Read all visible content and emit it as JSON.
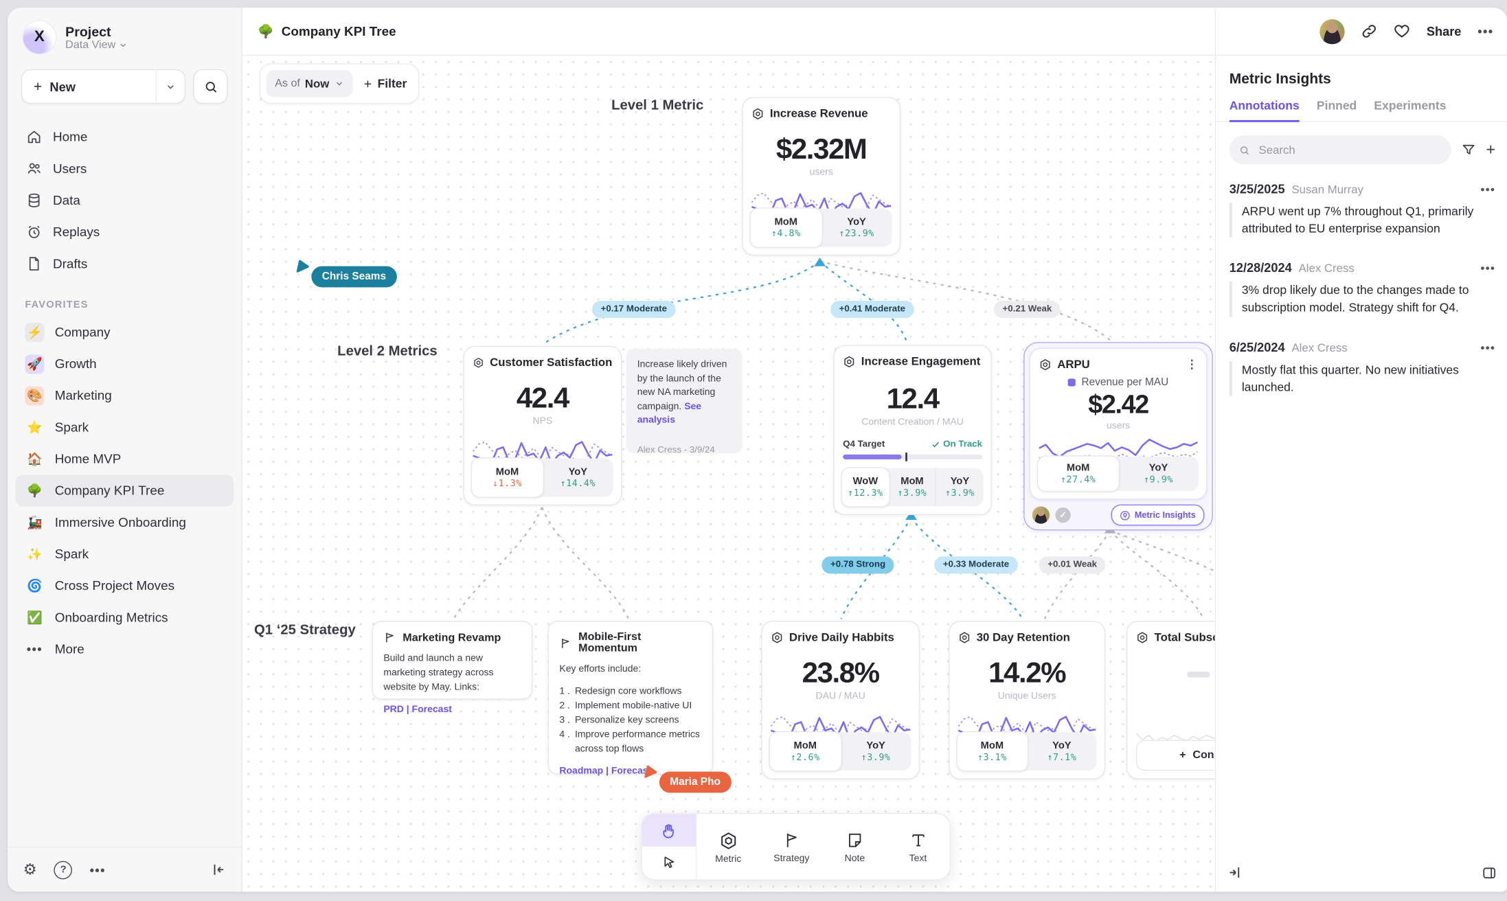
{
  "sidebar": {
    "workspace": {
      "name": "Project",
      "view": "Data View",
      "logo_letter": "X"
    },
    "new_label": "New",
    "nav": [
      {
        "label": "Home"
      },
      {
        "label": "Users"
      },
      {
        "label": "Data"
      },
      {
        "label": "Replays"
      },
      {
        "label": "Drafts"
      }
    ],
    "favorites_header": "FAVORITES",
    "favorites": [
      {
        "label": "Company",
        "emoji": "⚡"
      },
      {
        "label": "Growth",
        "emoji": "🚀"
      },
      {
        "label": "Marketing",
        "emoji": "🎨"
      },
      {
        "label": "Spark",
        "emoji": "⭐"
      },
      {
        "label": "Home MVP",
        "emoji": "🏠"
      },
      {
        "label": "Company KPI Tree",
        "emoji": "🌳"
      },
      {
        "label": "Immersive Onboarding",
        "emoji": "🚂"
      },
      {
        "label": "Spark",
        "emoji": "✨"
      },
      {
        "label": "Cross Project Moves",
        "emoji": "🌀"
      },
      {
        "label": "Onboarding Metrics",
        "emoji": "✅"
      }
    ],
    "more_label": "More"
  },
  "topbar": {
    "doc_emoji": "🌳",
    "title": "Company KPI Tree",
    "share_label": "Share"
  },
  "canvas": {
    "asof": {
      "prefix": "As of",
      "value": "Now"
    },
    "filter_label": "Filter",
    "levels": {
      "level1": "Level 1 Metric",
      "level2": "Level 2 Metrics",
      "level3": "Q1 ‘25 Strategy"
    },
    "edges": [
      {
        "text": "+0.17 Moderate",
        "strength": "moderate"
      },
      {
        "text": "+0.41 Moderate",
        "strength": "moderate"
      },
      {
        "text": "+0.21 Weak",
        "strength": "weak"
      },
      {
        "text": "+0.78 Strong",
        "strength": "strong"
      },
      {
        "text": "+0.33 Moderate",
        "strength": "moderate"
      },
      {
        "text": "+0.01 Weak",
        "strength": "weak"
      }
    ],
    "cursors": [
      {
        "name": "Chris Seams"
      },
      {
        "name": "Maria Pho"
      }
    ],
    "cards": {
      "revenue": {
        "title": "Increase Revenue",
        "value": "$2.32M",
        "unit": "users",
        "stats": [
          {
            "label": "MoM",
            "value": "↑4.8%"
          },
          {
            "label": "YoY",
            "value": "↑23.9%"
          }
        ]
      },
      "customer_satisfaction": {
        "title": "Customer Satisfaction",
        "value": "42.4",
        "unit": "NPS",
        "stats": [
          {
            "label": "MoM",
            "value": "↓1.3%"
          },
          {
            "label": "YoY",
            "value": "↑14.4%"
          }
        ]
      },
      "engagement": {
        "title": "Increase Engagement",
        "value": "12.4",
        "unit": "Content Creation / MAU",
        "target": {
          "label": "Q4 Target",
          "status": "On Track",
          "progress_pct": 42
        },
        "stats": [
          {
            "label": "WoW",
            "value": "↑12.3%"
          },
          {
            "label": "MoM",
            "value": "↑3.9%"
          },
          {
            "label": "YoY",
            "value": "↑3.9%"
          }
        ]
      },
      "arpu": {
        "title": "ARPU",
        "legend": "Revenue per MAU",
        "value": "$2.42",
        "unit": "users",
        "stats": [
          {
            "label": "MoM",
            "value": "↑27.4%"
          },
          {
            "label": "YoY",
            "value": "↑9.9%"
          }
        ],
        "insights_label": "Metric Insights"
      },
      "daily_habits": {
        "title": "Drive Daily Habbits",
        "value": "23.8%",
        "unit": "DAU / MAU",
        "stats": [
          {
            "label": "MoM",
            "value": "↑2.6%"
          },
          {
            "label": "YoY",
            "value": "↑3.9%"
          }
        ]
      },
      "retention": {
        "title": "30 Day Retention",
        "value": "14.2%",
        "unit": "Unique Users",
        "stats": [
          {
            "label": "MoM",
            "value": "↑3.1%"
          },
          {
            "label": "YoY",
            "value": "↑7.1%"
          }
        ]
      },
      "total_subscriptions": {
        "title": "Total Subscript",
        "connect_label": "Connect"
      }
    },
    "note": {
      "text": "Increase likely driven by the launch of the new NA marketing campaign.",
      "link": "See analysis",
      "byline": "Alex Cress - 3/9/24"
    },
    "strategies": {
      "marketing": {
        "title": "Marketing Revamp",
        "body": "Build and launch a new marketing strategy across website by May. Links:",
        "links": "PRD | Forecast"
      },
      "mobile": {
        "title": "Mobile-First Momentum",
        "intro": "Key efforts include:",
        "items": [
          "Redesign core workflows",
          "Implement mobile-native UI",
          "Personalize key screens",
          "Improve performance metrics across top flows"
        ],
        "links": "Roadmap | Forecast"
      }
    },
    "toolbar": {
      "tools": [
        {
          "label": "Metric"
        },
        {
          "label": "Strategy"
        },
        {
          "label": "Note"
        },
        {
          "label": "Text"
        }
      ]
    }
  },
  "insights": {
    "title": "Metric Insights",
    "tabs": [
      {
        "label": "Annotations"
      },
      {
        "label": "Pinned"
      },
      {
        "label": "Experiments"
      }
    ],
    "search_placeholder": "Search",
    "annotations": [
      {
        "date": "3/25/2025",
        "author": "Susan Murray",
        "text": "ARPU went up 7% throughout Q1, primarily attributed to EU enterprise expansion"
      },
      {
        "date": "12/28/2024",
        "author": "Alex Cress",
        "text": "3% drop likely due to the changes made to subscription model. Strategy shift for Q4."
      },
      {
        "date": "6/25/2024",
        "author": "Alex Cress",
        "text": "Mostly flat this quarter. No new initiatives launched."
      }
    ]
  },
  "sparklines": {
    "wave_solid": [
      22,
      24,
      26,
      30,
      16,
      14,
      28,
      25,
      10,
      22,
      20,
      27,
      14,
      30,
      22,
      19,
      24,
      12,
      9,
      20,
      29,
      17,
      22,
      21
    ],
    "wave_dotted": [
      18,
      11,
      9,
      16,
      22,
      26,
      20,
      17,
      24,
      20,
      15,
      22,
      27,
      14,
      18,
      22,
      20,
      27,
      31,
      22,
      11,
      15,
      19,
      22
    ],
    "arpu_solid": [
      16,
      12,
      22,
      26,
      20,
      17,
      14,
      11,
      13,
      16,
      10,
      19,
      15,
      18,
      24,
      13,
      6,
      10,
      14,
      17,
      15,
      11,
      13,
      9
    ],
    "arpu_dotted": [
      27,
      29,
      26,
      31,
      28,
      25,
      27,
      24,
      26,
      28,
      25,
      27,
      23,
      26,
      28,
      25,
      27,
      24,
      21,
      24,
      26,
      23,
      25,
      20
    ],
    "faint": [
      20,
      26,
      22,
      28,
      24,
      26,
      22,
      25,
      27,
      23,
      26,
      22,
      24,
      27,
      23,
      25,
      21,
      26,
      23,
      25,
      22,
      27,
      24,
      22
    ]
  },
  "colors": {
    "accent": "#6a52ee",
    "positive": "#2f9c8c",
    "negative": "#e2674a",
    "edge_blue": "#3fa3d7",
    "cursor_teal": "#1b7f9e",
    "cursor_orange": "#e9653f"
  }
}
